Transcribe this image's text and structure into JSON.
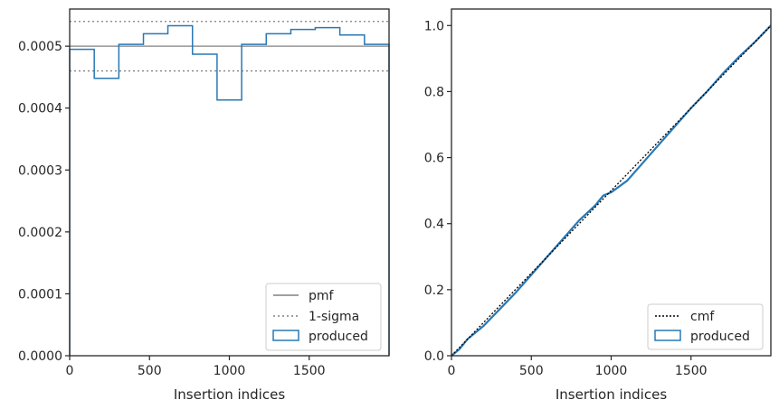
{
  "colors": {
    "produced": "#2878b5",
    "pmf": "#808080",
    "sigma": "#808080",
    "cmf": "#000000",
    "axes": "#262626"
  },
  "chart_data": [
    {
      "type": "line",
      "xlabel": "Insertion indices",
      "ylabel": "",
      "xlim": [
        0,
        2000
      ],
      "ylim": [
        0,
        0.00056
      ],
      "xticks": [
        0,
        500,
        1000,
        1500
      ],
      "yticks": [
        0.0,
        0.0001,
        0.0002,
        0.0003,
        0.0004,
        0.0005
      ],
      "ytick_labels": [
        "0.0000",
        "0.0001",
        "0.0002",
        "0.0003",
        "0.0004",
        "0.0005"
      ],
      "legend_position": "lower-right",
      "pmf": {
        "name": "pmf",
        "value": 0.0005
      },
      "sigma": {
        "name": "1-sigma",
        "values": [
          0.00046,
          0.00054
        ]
      },
      "produced": {
        "name": "produced",
        "bin_edges": [
          0,
          154,
          308,
          462,
          615,
          769,
          923,
          1077,
          1231,
          1385,
          1538,
          1692,
          1846,
          2000
        ],
        "values": [
          0.000495,
          0.000448,
          0.000503,
          0.00052,
          0.000533,
          0.000487,
          0.000413,
          0.000503,
          0.00052,
          0.000527,
          0.00053,
          0.000518,
          0.000503
        ]
      }
    },
    {
      "type": "line",
      "xlabel": "Insertion indices",
      "ylabel": "",
      "xlim": [
        0,
        2000
      ],
      "ylim": [
        0,
        1.05
      ],
      "xticks": [
        0,
        500,
        1000,
        1500
      ],
      "yticks": [
        0.0,
        0.2,
        0.4,
        0.6,
        0.8,
        1.0
      ],
      "ytick_labels": [
        "0.0",
        "0.2",
        "0.4",
        "0.6",
        "0.8",
        "1.0"
      ],
      "legend_position": "lower-right",
      "cmf": {
        "name": "cmf",
        "x": [
          0,
          2000
        ],
        "y": [
          0,
          1.0
        ]
      },
      "produced": {
        "name": "produced",
        "x": [
          0,
          50,
          100,
          150,
          200,
          300,
          400,
          500,
          600,
          700,
          800,
          900,
          950,
          1000,
          1100,
          1200,
          1300,
          1400,
          1500,
          1600,
          1700,
          1800,
          1900,
          2000
        ],
        "y": [
          0,
          0.02,
          0.05,
          0.07,
          0.09,
          0.14,
          0.19,
          0.245,
          0.3,
          0.355,
          0.41,
          0.455,
          0.485,
          0.495,
          0.53,
          0.585,
          0.64,
          0.695,
          0.75,
          0.8,
          0.855,
          0.905,
          0.95,
          1.0
        ]
      }
    }
  ]
}
